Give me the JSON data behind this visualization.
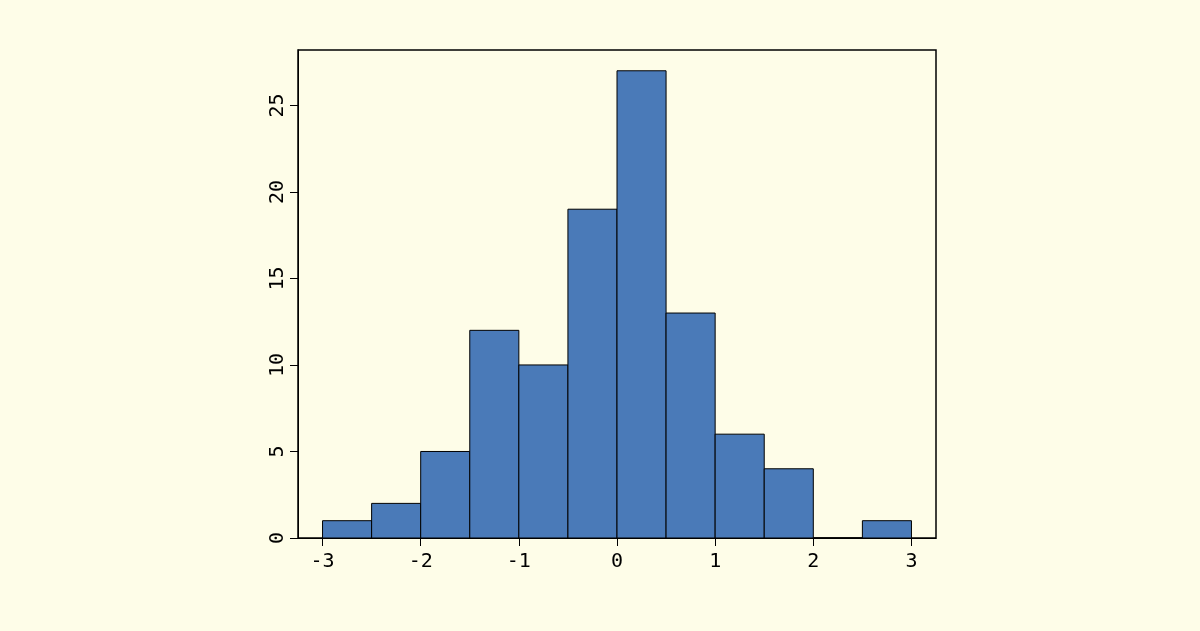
{
  "chart_data": {
    "type": "histogram",
    "bins": [
      -3,
      -2.5,
      -2,
      -1.5,
      -1,
      -0.5,
      0,
      0.5,
      1,
      1.5,
      2,
      2.5,
      3
    ],
    "values": [
      1,
      2,
      5,
      12,
      10,
      19,
      27,
      13,
      6,
      4,
      0,
      1
    ],
    "color": "#4a7ab8",
    "xlim": [
      -3.25,
      3.25
    ],
    "xticks": [
      -3,
      -2,
      -1,
      0,
      1,
      2,
      3
    ],
    "ylim": [
      0,
      28.2
    ],
    "yticks": [
      0,
      5,
      10,
      15,
      20,
      25
    ],
    "grid": false
  }
}
